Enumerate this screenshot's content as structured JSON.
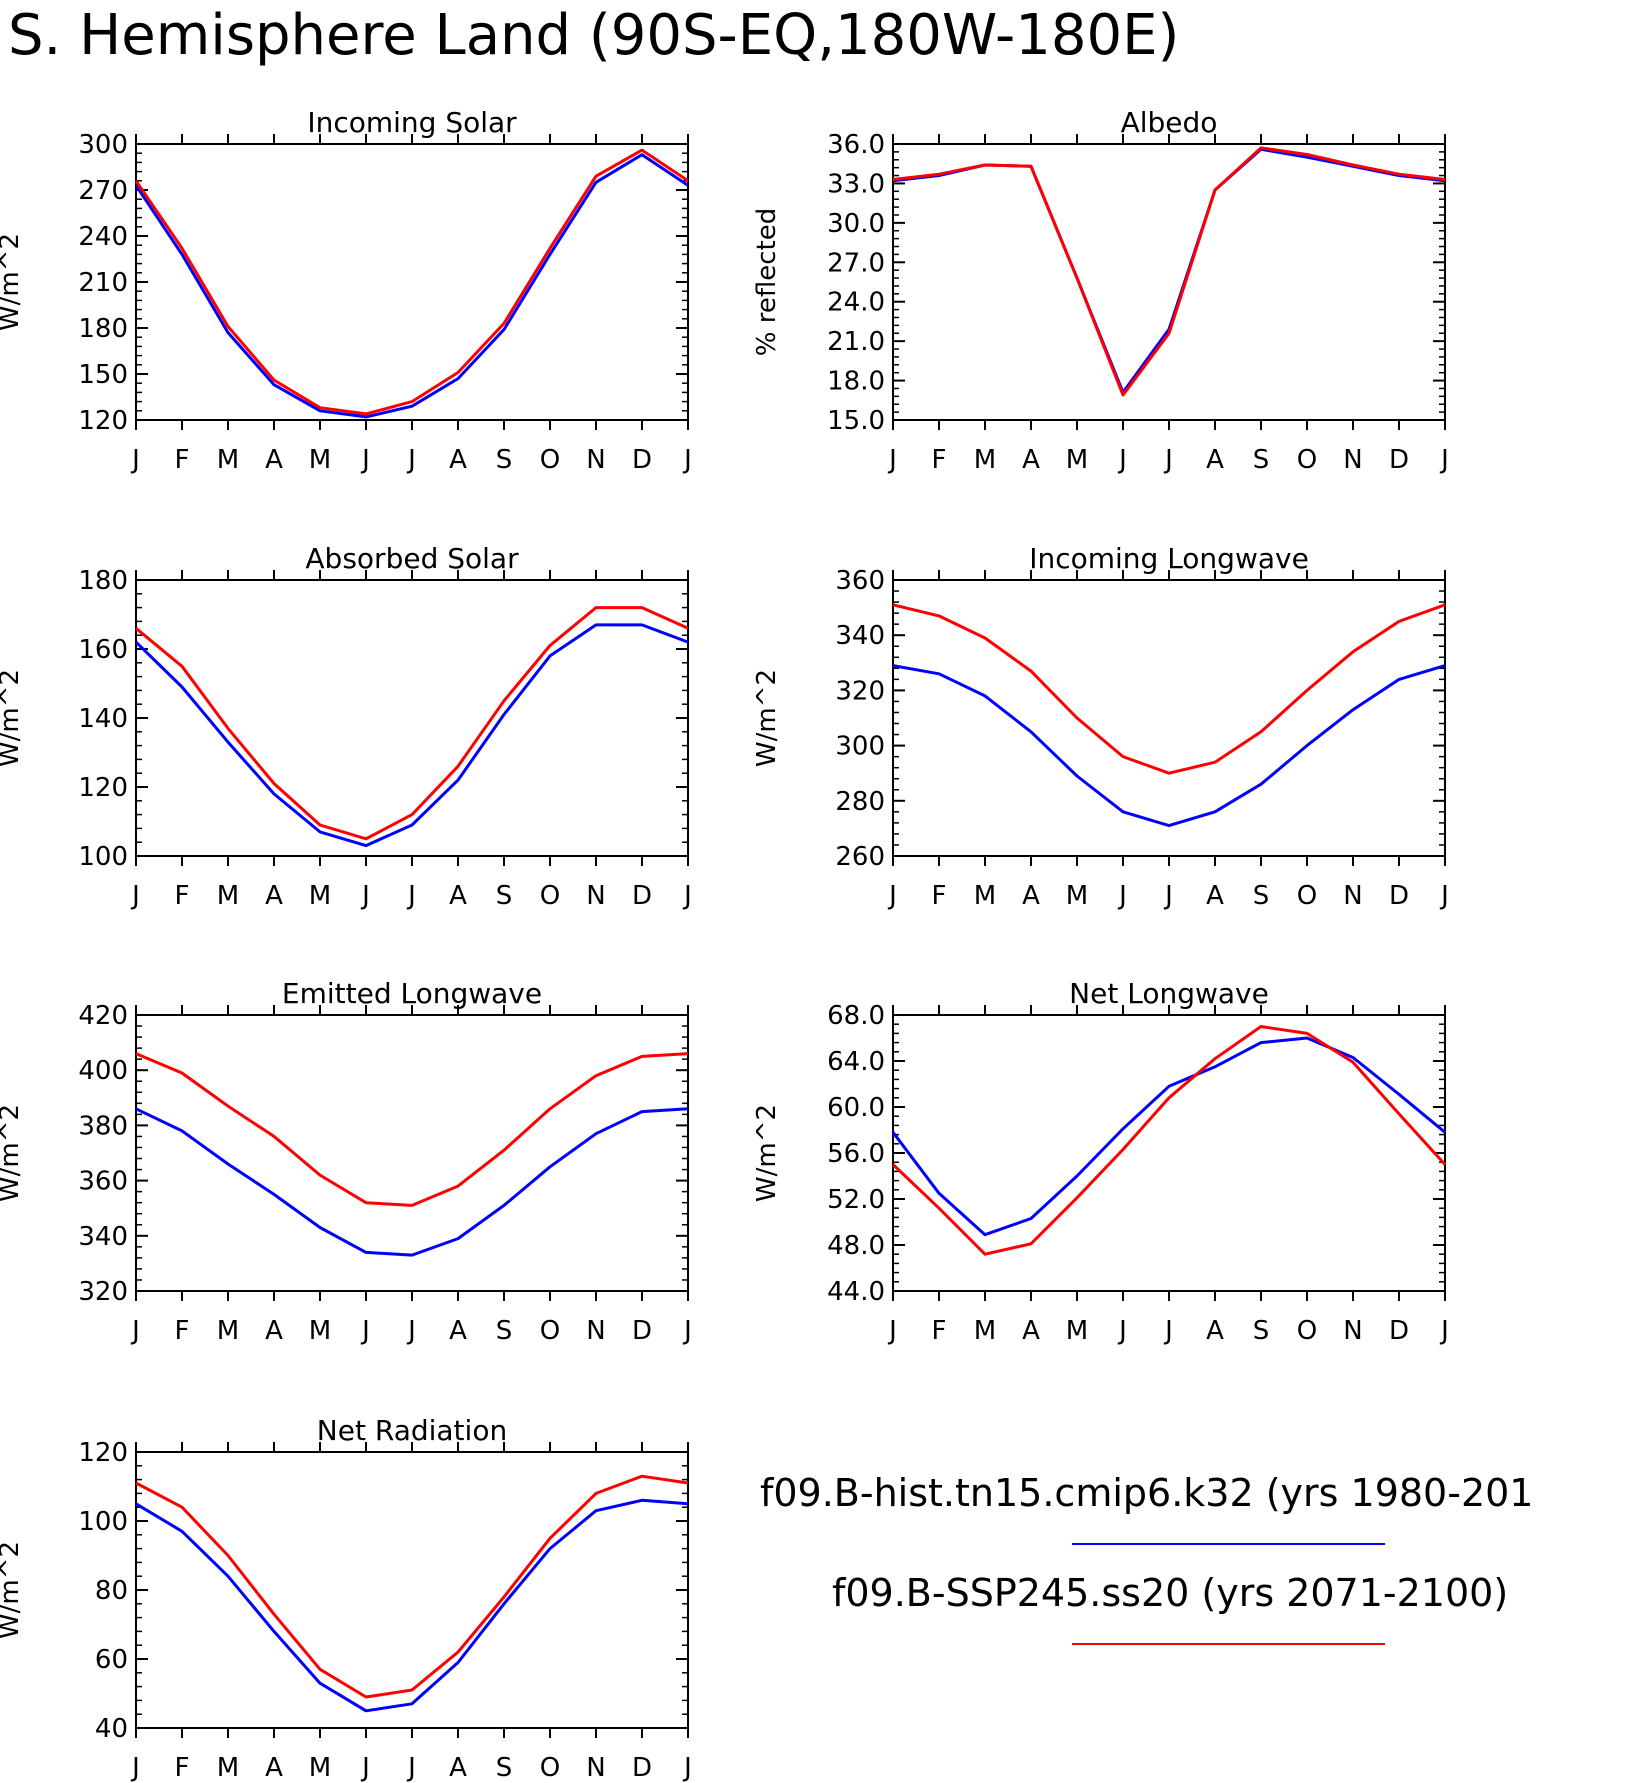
{
  "title": "S. Hemisphere Land (90S-EQ,180W-180E)",
  "legend": {
    "entries": [
      {
        "label": "f09.B-hist.tn15.cmip6.k32 (yrs 1980-201",
        "color": "#0000ff"
      },
      {
        "label": "f09.B-SSP245.ss20 (yrs 2071-2100)",
        "color": "#ff0000"
      }
    ]
  },
  "chart_data": [
    {
      "type": "line",
      "title": "Incoming Solar",
      "ylabel": "W/m^2",
      "ylim": [
        120,
        300
      ],
      "yticks": [
        "120",
        "150",
        "180",
        "210",
        "240",
        "270",
        "300"
      ],
      "categories": [
        "J",
        "F",
        "M",
        "A",
        "M",
        "J",
        "J",
        "A",
        "S",
        "O",
        "N",
        "D",
        "J"
      ],
      "series": [
        {
          "color": "#0000ff",
          "values": [
            273,
            228,
            177,
            143,
            126,
            122,
            129,
            147,
            179,
            228,
            275,
            293,
            273
          ]
        },
        {
          "color": "#ff0000",
          "values": [
            276,
            232,
            181,
            146,
            128,
            124,
            132,
            151,
            183,
            232,
            279,
            296,
            276
          ]
        }
      ]
    },
    {
      "type": "line",
      "title": "Albedo",
      "ylabel": "% reflected",
      "ylim": [
        15,
        36
      ],
      "yticks": [
        "15.0",
        "18.0",
        "21.0",
        "24.0",
        "27.0",
        "30.0",
        "33.0",
        "36.0"
      ],
      "categories": [
        "J",
        "F",
        "M",
        "A",
        "M",
        "J",
        "J",
        "A",
        "S",
        "O",
        "N",
        "D",
        "J"
      ],
      "series": [
        {
          "color": "#0000ff",
          "values": [
            33.2,
            33.6,
            34.4,
            34.3,
            25.8,
            17.1,
            21.9,
            32.5,
            35.6,
            35.0,
            34.3,
            33.6,
            33.2
          ]
        },
        {
          "color": "#ff0000",
          "values": [
            33.3,
            33.7,
            34.4,
            34.3,
            25.8,
            16.9,
            21.6,
            32.5,
            35.7,
            35.2,
            34.4,
            33.7,
            33.3
          ]
        }
      ]
    },
    {
      "type": "line",
      "title": "Absorbed Solar",
      "ylabel": "W/m^2",
      "ylim": [
        100,
        180
      ],
      "yticks": [
        "100",
        "120",
        "140",
        "160",
        "180"
      ],
      "categories": [
        "J",
        "F",
        "M",
        "A",
        "M",
        "J",
        "J",
        "A",
        "S",
        "O",
        "N",
        "D",
        "J"
      ],
      "series": [
        {
          "color": "#0000ff",
          "values": [
            162,
            149,
            133,
            118,
            107,
            103,
            109,
            122,
            141,
            158,
            167,
            167,
            162
          ]
        },
        {
          "color": "#ff0000",
          "values": [
            166,
            155,
            137,
            121,
            109,
            105,
            112,
            126,
            145,
            161,
            172,
            172,
            166
          ]
        }
      ]
    },
    {
      "type": "line",
      "title": "Incoming Longwave",
      "ylabel": "W/m^2",
      "ylim": [
        260,
        360
      ],
      "yticks": [
        "260",
        "280",
        "300",
        "320",
        "340",
        "360"
      ],
      "categories": [
        "J",
        "F",
        "M",
        "A",
        "M",
        "J",
        "J",
        "A",
        "S",
        "O",
        "N",
        "D",
        "J"
      ],
      "series": [
        {
          "color": "#0000ff",
          "values": [
            329,
            326,
            318,
            305,
            289,
            276,
            271,
            276,
            286,
            300,
            313,
            324,
            329
          ]
        },
        {
          "color": "#ff0000",
          "values": [
            351,
            347,
            339,
            327,
            310,
            296,
            290,
            294,
            305,
            320,
            334,
            345,
            351
          ]
        }
      ]
    },
    {
      "type": "line",
      "title": "Emitted Longwave",
      "ylabel": "W/m^2",
      "ylim": [
        320,
        420
      ],
      "yticks": [
        "320",
        "340",
        "360",
        "380",
        "400",
        "420"
      ],
      "categories": [
        "J",
        "F",
        "M",
        "A",
        "M",
        "J",
        "J",
        "A",
        "S",
        "O",
        "N",
        "D",
        "J"
      ],
      "series": [
        {
          "color": "#0000ff",
          "values": [
            386,
            378,
            366,
            355,
            343,
            334,
            333,
            339,
            351,
            365,
            377,
            385,
            386
          ]
        },
        {
          "color": "#ff0000",
          "values": [
            406,
            399,
            387,
            376,
            362,
            352,
            351,
            358,
            371,
            386,
            398,
            405,
            406
          ]
        }
      ]
    },
    {
      "type": "line",
      "title": "Net Longwave",
      "ylabel": "W/m^2",
      "ylim": [
        44,
        68
      ],
      "yticks": [
        "44.0",
        "48.0",
        "52.0",
        "56.0",
        "60.0",
        "64.0",
        "68.0"
      ],
      "categories": [
        "J",
        "F",
        "M",
        "A",
        "M",
        "J",
        "J",
        "A",
        "S",
        "O",
        "N",
        "D",
        "J"
      ],
      "series": [
        {
          "color": "#0000ff",
          "values": [
            57.8,
            52.5,
            48.9,
            50.3,
            54.0,
            58.1,
            61.8,
            63.5,
            65.6,
            66.0,
            64.3,
            61.1,
            57.8
          ]
        },
        {
          "color": "#ff0000",
          "values": [
            55.0,
            51.2,
            47.2,
            48.1,
            52.1,
            56.3,
            60.8,
            64.2,
            67.0,
            66.4,
            63.9,
            59.4,
            55.0
          ]
        }
      ]
    },
    {
      "type": "line",
      "title": "Net Radiation",
      "ylabel": "W/m^2",
      "ylim": [
        40,
        120
      ],
      "yticks": [
        "40",
        "60",
        "80",
        "100",
        "120"
      ],
      "categories": [
        "J",
        "F",
        "M",
        "A",
        "M",
        "J",
        "J",
        "A",
        "S",
        "O",
        "N",
        "D",
        "J"
      ],
      "series": [
        {
          "color": "#0000ff",
          "values": [
            105,
            97,
            84,
            68,
            53,
            45,
            47,
            59,
            76,
            92,
            103,
            106,
            105
          ]
        },
        {
          "color": "#ff0000",
          "values": [
            111,
            104,
            90,
            73,
            57,
            49,
            51,
            62,
            78,
            95,
            108,
            113,
            111
          ]
        }
      ]
    }
  ]
}
